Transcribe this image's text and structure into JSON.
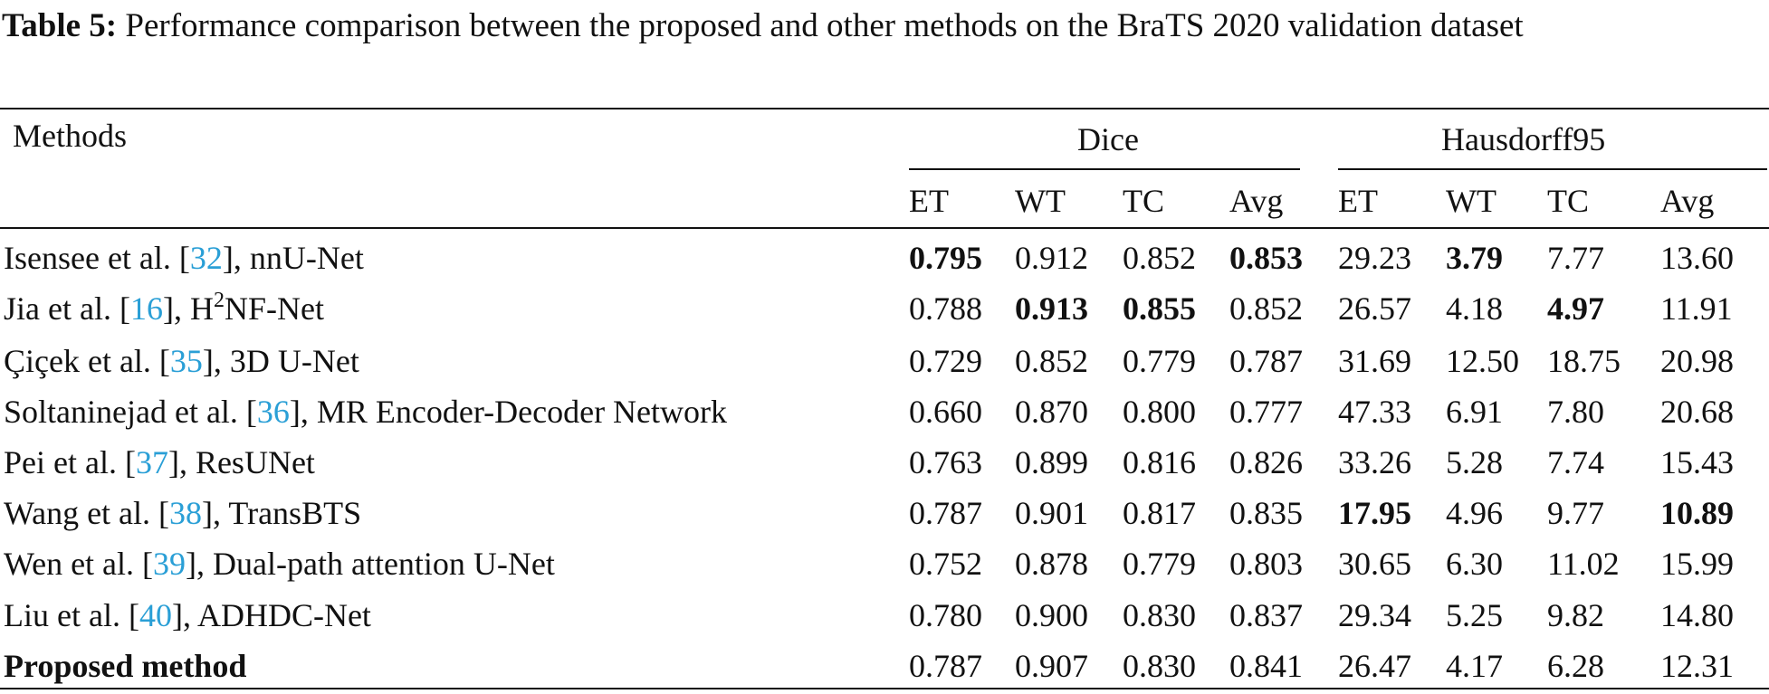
{
  "table": {
    "caption_label": "Table 5:",
    "caption": "Performance comparison between the proposed and other methods on the BraTS 2020 validation dataset",
    "header": {
      "methods": "Methods",
      "groups": [
        "Dice",
        "Hausdorff95"
      ],
      "columns": [
        "ET",
        "WT",
        "TC",
        "Avg",
        "ET",
        "WT",
        "TC",
        "Avg"
      ]
    },
    "rows": [
      {
        "method": [
          {
            "text": "Isensee et al. ["
          },
          {
            "text": "32",
            "ref": true
          },
          {
            "text": "], nnU-Net"
          }
        ],
        "values": [
          "0.795",
          "0.912",
          "0.852",
          "0.853",
          "29.23",
          "3.79",
          "7.77",
          "13.60"
        ],
        "bold": [
          0,
          3,
          5
        ]
      },
      {
        "method": [
          {
            "text": "Jia et al. ["
          },
          {
            "text": "16",
            "ref": true
          },
          {
            "text": "], H"
          },
          {
            "text": "2",
            "sup": true
          },
          {
            "text": "NF-Net"
          }
        ],
        "values": [
          "0.788",
          "0.913",
          "0.855",
          "0.852",
          "26.57",
          "4.18",
          "4.97",
          "11.91"
        ],
        "bold": [
          1,
          2,
          6
        ]
      },
      {
        "method": [
          {
            "text": "Çiçek et al. ["
          },
          {
            "text": "35",
            "ref": true
          },
          {
            "text": "], 3D U-Net"
          }
        ],
        "values": [
          "0.729",
          "0.852",
          "0.779",
          "0.787",
          "31.69",
          "12.50",
          "18.75",
          "20.98"
        ],
        "bold": []
      },
      {
        "method": [
          {
            "text": "Soltaninejad et al. ["
          },
          {
            "text": "36",
            "ref": true
          },
          {
            "text": "], MR Encoder-Decoder Network"
          }
        ],
        "values": [
          "0.660",
          "0.870",
          "0.800",
          "0.777",
          "47.33",
          "6.91",
          "7.80",
          "20.68"
        ],
        "bold": []
      },
      {
        "method": [
          {
            "text": "Pei et al. ["
          },
          {
            "text": "37",
            "ref": true
          },
          {
            "text": "], ResUNet"
          }
        ],
        "values": [
          "0.763",
          "0.899",
          "0.816",
          "0.826",
          "33.26",
          "5.28",
          "7.74",
          "15.43"
        ],
        "bold": []
      },
      {
        "method": [
          {
            "text": "Wang et al. ["
          },
          {
            "text": "38",
            "ref": true
          },
          {
            "text": "], TransBTS"
          }
        ],
        "values": [
          "0.787",
          "0.901",
          "0.817",
          "0.835",
          "17.95",
          "4.96",
          "9.77",
          "10.89"
        ],
        "bold": [
          4,
          7
        ]
      },
      {
        "method": [
          {
            "text": "Wen et al. ["
          },
          {
            "text": "39",
            "ref": true
          },
          {
            "text": "], Dual-path attention U-Net"
          }
        ],
        "values": [
          "0.752",
          "0.878",
          "0.779",
          "0.803",
          "30.65",
          "6.30",
          "11.02",
          "15.99"
        ],
        "bold": []
      },
      {
        "method": [
          {
            "text": "Liu et al. ["
          },
          {
            "text": "40",
            "ref": true
          },
          {
            "text": "], ADHDC-Net"
          }
        ],
        "values": [
          "0.780",
          "0.900",
          "0.830",
          "0.837",
          "29.34",
          "5.25",
          "9.82",
          "14.80"
        ],
        "bold": []
      },
      {
        "method": [
          {
            "text": "Proposed method",
            "bold": true
          }
        ],
        "values": [
          "0.787",
          "0.907",
          "0.830",
          "0.841",
          "26.47",
          "4.17",
          "6.28",
          "12.31"
        ],
        "bold": []
      }
    ]
  }
}
